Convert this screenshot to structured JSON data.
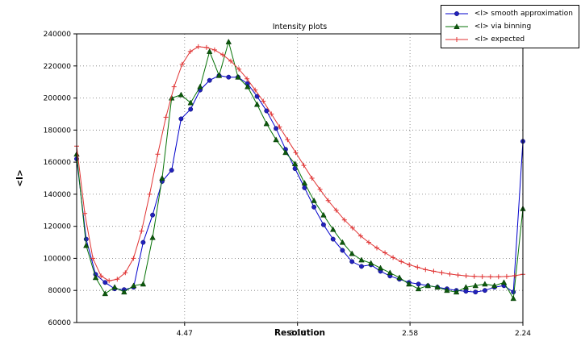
{
  "chart_data": {
    "type": "line",
    "title": "Intensity plots",
    "xlabel": "Resolution",
    "ylabel": "<I>",
    "ylim": [
      60000,
      240000
    ],
    "yticks": [
      60000,
      80000,
      100000,
      120000,
      140000,
      160000,
      180000,
      200000,
      220000,
      240000
    ],
    "xticks": [
      {
        "label": "4.47",
        "pos": 0.242
      },
      {
        "label": "3.16",
        "pos": 0.495
      },
      {
        "label": "2.58",
        "pos": 0.747
      },
      {
        "label": "2.24",
        "pos": 1.0
      }
    ],
    "grid": true,
    "legend_position": "upper right",
    "series": [
      {
        "name": "<I> smooth approximation",
        "marker": "circle",
        "color": "#0000cc",
        "marker_fill": "#2222bb",
        "values": [
          162000,
          112000,
          90000,
          85000,
          81000,
          80500,
          82000,
          110000,
          127000,
          148000,
          155000,
          187000,
          193000,
          205000,
          211000,
          214000,
          213000,
          213000,
          209000,
          201000,
          192000,
          181000,
          168000,
          156000,
          144000,
          132000,
          121000,
          112000,
          105000,
          98000,
          95000,
          96000,
          92000,
          89000,
          87000,
          85000,
          84000,
          83000,
          82000,
          81000,
          80000,
          79500,
          79000,
          80000,
          82000,
          83000,
          79000,
          173000
        ]
      },
      {
        "name": "<I> via binning",
        "marker": "triangle",
        "color": "#077307",
        "marker_fill": "#0d590d",
        "values": [
          165000,
          108000,
          88000,
          78000,
          82000,
          79000,
          83000,
          84000,
          113000,
          150000,
          200000,
          202000,
          197000,
          207000,
          229000,
          214000,
          235000,
          213000,
          207000,
          196000,
          184000,
          174000,
          166000,
          159000,
          147000,
          136000,
          127000,
          118000,
          110000,
          103000,
          99000,
          97000,
          94000,
          91000,
          88000,
          84000,
          81000,
          83000,
          82000,
          80000,
          79000,
          82000,
          83000,
          84000,
          83000,
          85000,
          75000,
          131000
        ]
      },
      {
        "name": "<I> expected",
        "marker": "plus",
        "color": "#e03333",
        "values": [
          170000,
          128000,
          100000,
          89000,
          86000,
          87000,
          91000,
          100000,
          117000,
          140000,
          165000,
          188000,
          207000,
          221000,
          229000,
          232000,
          231500,
          230000,
          227000,
          223000,
          218000,
          212000,
          205000,
          198000,
          190000,
          182000,
          174000,
          166000,
          158000,
          150000,
          143000,
          136000,
          130000,
          124000,
          119000,
          114000,
          110000,
          106500,
          103500,
          100500,
          98000,
          96000,
          94500,
          93000,
          92000,
          91000,
          90200,
          89600,
          89100,
          88800,
          88600,
          88500,
          88500,
          88700,
          89200,
          90000
        ]
      }
    ]
  }
}
